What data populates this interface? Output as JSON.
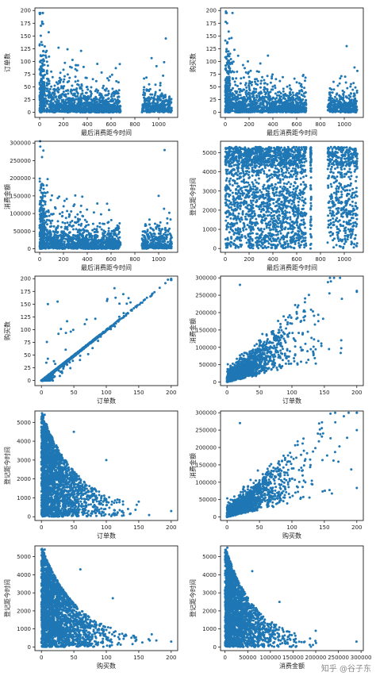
{
  "colors": {
    "marker": "#1f77b4",
    "axes": "#000000",
    "watermark": "#8a8a8a"
  },
  "watermark": "知乎 @谷子东",
  "chart_data": [
    {
      "type": "scatter",
      "xlabel": "最后消费距今时间",
      "ylabel": "订单数",
      "xlim": [
        -40,
        1160
      ],
      "ylim": [
        -10,
        205
      ],
      "xticks": [
        0,
        200,
        400,
        600,
        800,
        1000
      ],
      "yticks": [
        0,
        25,
        50,
        75,
        100,
        125,
        150,
        175,
        200
      ],
      "gaps": [
        [
          680,
          770
        ],
        [
          800,
          860
        ]
      ],
      "sample_points": [
        [
          5,
          195
        ],
        [
          10,
          170
        ],
        [
          30,
          120
        ],
        [
          200,
          60
        ],
        [
          400,
          50
        ],
        [
          920,
          55
        ],
        [
          1060,
          145
        ]
      ]
    },
    {
      "type": "scatter",
      "xlabel": "最后消费距今时间",
      "ylabel": "购买数",
      "xlim": [
        -40,
        1160
      ],
      "ylim": [
        -10,
        205
      ],
      "xticks": [
        0,
        200,
        400,
        600,
        800,
        1000
      ],
      "yticks": [
        0,
        25,
        50,
        75,
        100,
        125,
        150,
        175,
        200
      ],
      "gaps": [
        [
          680,
          760
        ],
        [
          800,
          860
        ]
      ],
      "sample_points": [
        [
          5,
          198
        ],
        [
          15,
          175
        ],
        [
          40,
          115
        ],
        [
          250,
          65
        ],
        [
          420,
          48
        ],
        [
          910,
          60
        ],
        [
          1020,
          130
        ]
      ]
    },
    {
      "type": "scatter",
      "xlabel": "最后消费距今时间",
      "ylabel": "消费金额",
      "xlim": [
        -40,
        1160
      ],
      "ylim": [
        -10000,
        305000
      ],
      "xticks": [
        0,
        200,
        400,
        600,
        800,
        1000
      ],
      "yticks": [
        0,
        50000,
        100000,
        150000,
        200000,
        250000,
        300000
      ],
      "gaps": [
        [
          680,
          770
        ],
        [
          800,
          860
        ]
      ],
      "sample_points": [
        [
          5,
          290000
        ],
        [
          20,
          260000
        ],
        [
          60,
          180000
        ],
        [
          300,
          90000
        ],
        [
          1000,
          150000
        ],
        [
          1050,
          280000
        ]
      ]
    },
    {
      "type": "scatter",
      "xlabel": "最后消费距今时间",
      "ylabel": "登记距今时间",
      "xlim": [
        -40,
        1160
      ],
      "ylim": [
        -200,
        5600
      ],
      "xticks": [
        0,
        200,
        400,
        600,
        800,
        1000
      ],
      "yticks": [
        0,
        1000,
        2000,
        3000,
        4000,
        5000
      ],
      "gaps": [
        [
          680,
          710
        ],
        [
          730,
          860
        ]
      ],
      "sample_points": [
        [
          5,
          5200
        ],
        [
          300,
          4700
        ],
        [
          600,
          5100
        ],
        [
          900,
          5200
        ],
        [
          1050,
          4500
        ]
      ]
    },
    {
      "type": "scatter",
      "xlabel": "订单数",
      "ylabel": "购买数",
      "xlim": [
        -10,
        210
      ],
      "ylim": [
        -10,
        205
      ],
      "xticks": [
        0,
        50,
        100,
        150,
        200
      ],
      "yticks": [
        0,
        25,
        50,
        75,
        100,
        125,
        150,
        175,
        200
      ],
      "sample_points": [
        [
          10,
          150
        ],
        [
          25,
          155
        ],
        [
          60,
          60
        ],
        [
          120,
          125
        ],
        [
          195,
          198
        ]
      ]
    },
    {
      "type": "scatter",
      "xlabel": "订单数",
      "ylabel": "消费金额",
      "xlim": [
        -10,
        210
      ],
      "ylim": [
        -10000,
        305000
      ],
      "xticks": [
        0,
        50,
        100,
        150,
        200
      ],
      "yticks": [
        0,
        50000,
        100000,
        150000,
        200000,
        250000,
        300000
      ],
      "sample_points": [
        [
          20,
          280000
        ],
        [
          80,
          150000
        ],
        [
          120,
          230000
        ],
        [
          160,
          290000
        ],
        [
          200,
          260000
        ]
      ]
    },
    {
      "type": "scatter",
      "xlabel": "订单数",
      "ylabel": "登记距今时间",
      "xlim": [
        -10,
        210
      ],
      "ylim": [
        -200,
        5600
      ],
      "xticks": [
        0,
        50,
        100,
        150,
        200
      ],
      "yticks": [
        0,
        1000,
        2000,
        3000,
        4000,
        5000
      ],
      "sample_points": [
        [
          5,
          5400
        ],
        [
          50,
          4500
        ],
        [
          100,
          3000
        ],
        [
          150,
          800
        ],
        [
          200,
          300
        ]
      ]
    },
    {
      "type": "scatter",
      "xlabel": "购买数",
      "ylabel": "消费金额",
      "xlim": [
        -10,
        210
      ],
      "ylim": [
        -10000,
        305000
      ],
      "xticks": [
        0,
        50,
        100,
        150,
        200
      ],
      "yticks": [
        0,
        50000,
        100000,
        150000,
        200000,
        250000,
        300000
      ],
      "sample_points": [
        [
          20,
          270000
        ],
        [
          80,
          160000
        ],
        [
          140,
          240000
        ],
        [
          180,
          290000
        ],
        [
          200,
          250000
        ]
      ]
    },
    {
      "type": "scatter",
      "xlabel": "购买数",
      "ylabel": "登记距今时间",
      "xlim": [
        -10,
        210
      ],
      "ylim": [
        -200,
        5600
      ],
      "xticks": [
        0,
        50,
        100,
        150,
        200
      ],
      "yticks": [
        0,
        1000,
        2000,
        3000,
        4000,
        5000
      ],
      "sample_points": [
        [
          5,
          5400
        ],
        [
          60,
          4300
        ],
        [
          110,
          2700
        ],
        [
          170,
          700
        ],
        [
          200,
          300
        ]
      ]
    },
    {
      "type": "scatter",
      "xlabel": "消费金额",
      "ylabel": "登记距今时间",
      "xlim": [
        -10000,
        305000
      ],
      "ylim": [
        -200,
        5600
      ],
      "xticks": [
        0,
        50000,
        100000,
        150000,
        200000,
        250000,
        300000
      ],
      "yticks": [
        0,
        1000,
        2000,
        3000,
        4000,
        5000
      ],
      "sample_points": [
        [
          5000,
          5500
        ],
        [
          60000,
          4200
        ],
        [
          120000,
          2500
        ],
        [
          200000,
          900
        ],
        [
          290000,
          300
        ]
      ]
    }
  ]
}
